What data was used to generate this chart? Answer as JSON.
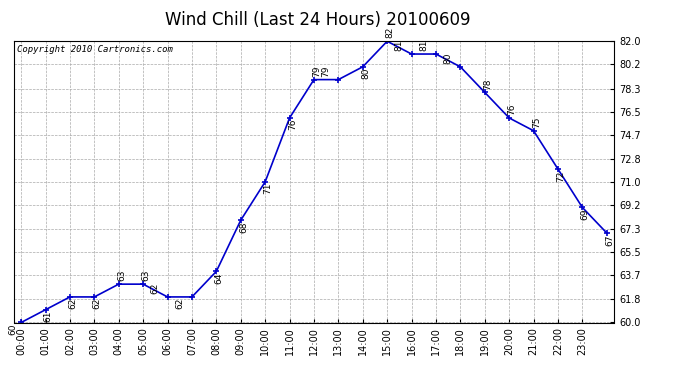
{
  "title": "Wind Chill (Last 24 Hours) 20100609",
  "copyright_text": "Copyright 2010 Cartronics.com",
  "hours": [
    "00:00",
    "01:00",
    "02:00",
    "03:00",
    "04:00",
    "05:00",
    "06:00",
    "07:00",
    "08:00",
    "09:00",
    "10:00",
    "11:00",
    "12:00",
    "13:00",
    "14:00",
    "15:00",
    "16:00",
    "17:00",
    "18:00",
    "19:00",
    "20:00",
    "21:00",
    "22:00",
    "23:00"
  ],
  "values": [
    60,
    61,
    62,
    62,
    63,
    63,
    62,
    62,
    64,
    68,
    71,
    76,
    79,
    79,
    80,
    82,
    81,
    81,
    80,
    78,
    76,
    75,
    72,
    69,
    67
  ],
  "ylim": [
    60.0,
    82.0
  ],
  "yticks": [
    60.0,
    61.8,
    63.7,
    65.5,
    67.3,
    69.2,
    71.0,
    72.8,
    74.7,
    76.5,
    78.3,
    80.2,
    82.0
  ],
  "line_color": "#0000cc",
  "bg_color": "#ffffff",
  "grid_color": "#aaaaaa",
  "title_fontsize": 12,
  "label_fontsize": 7,
  "annot_fontsize": 6.5,
  "copyright_fontsize": 6.5
}
